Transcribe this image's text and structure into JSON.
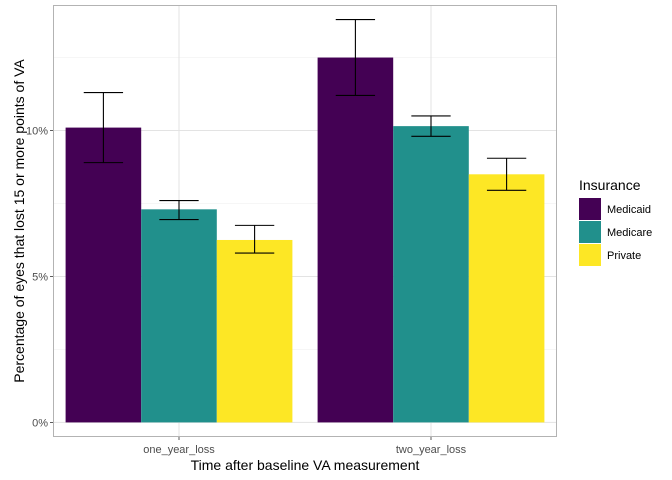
{
  "chart_data": {
    "type": "bar",
    "categories": [
      "one_year_loss",
      "two_year_loss"
    ],
    "series": [
      {
        "name": "Medicaid",
        "color": "#440154",
        "values": [
          10.1,
          12.5
        ],
        "error_low": [
          8.9,
          11.2
        ],
        "error_high": [
          11.3,
          13.8
        ]
      },
      {
        "name": "Medicare",
        "color": "#21908C",
        "values": [
          7.3,
          10.15
        ],
        "error_low": [
          6.95,
          9.8
        ],
        "error_high": [
          7.6,
          10.5
        ]
      },
      {
        "name": "Private",
        "color": "#FDE725",
        "values": [
          6.25,
          8.5
        ],
        "error_low": [
          5.8,
          7.95
        ],
        "error_high": [
          6.75,
          9.05
        ]
      }
    ],
    "xlabel": "Time after baseline VA measurement",
    "ylabel": "Percentage of eyes that lost 15 or more points of VA",
    "ylim": [
      -0.5,
      14.3
    ],
    "yticks": [
      0,
      5,
      10
    ],
    "ytick_labels": [
      "0%",
      "5%",
      "10%"
    ],
    "legend_title": "Insurance",
    "legend_position": "right",
    "grid": true
  }
}
